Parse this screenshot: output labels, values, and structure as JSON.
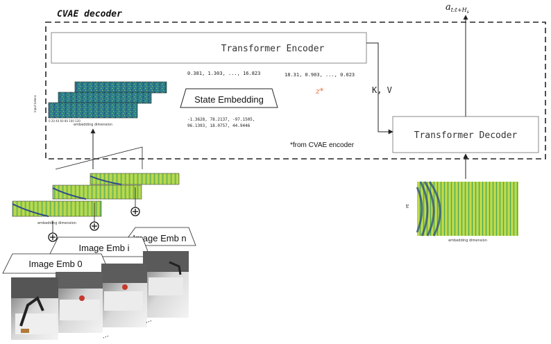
{
  "decoder_title": "CVAE decoder",
  "output_label": "a",
  "output_subscript": "t:t+H",
  "output_subsub": "s",
  "transformer_encoder": "Transformer Encoder",
  "transformer_decoder": "Transformer Decoder",
  "state_embedding": "State Embedding",
  "kv_label": "K, V",
  "z_label": "z*",
  "from_cvae_note": "*from CVAE encoder",
  "vector_top_left": "0.381, 1.303, ..., 16.823",
  "vector_top_right": "18.31, 0.903, ..., 0.023",
  "vector_bottom_line1": "-1.3628,  78.2137, -97.1505,",
  "vector_bottom_line2": "96.1393,  18.0757,  44.9446",
  "image_emb_0": "Image Emb 0",
  "image_emb_i": "Image Emb i",
  "image_emb_n": "Image Emb n",
  "embedding_dimension": "embedding dimension",
  "heatmap_axis_labels": {
    "input_tokens": "input tokens",
    "x_axis_ticks": [
      "0",
      "20",
      "40",
      "60",
      "80",
      "100",
      "120"
    ]
  },
  "ellipsis": "...",
  "colors": {
    "heat_dark": "#1f3d7a",
    "heat_green": "#57b85a",
    "heat_yellow": "#e8e54a",
    "z_color": "#e8703a",
    "line": "#222222"
  }
}
